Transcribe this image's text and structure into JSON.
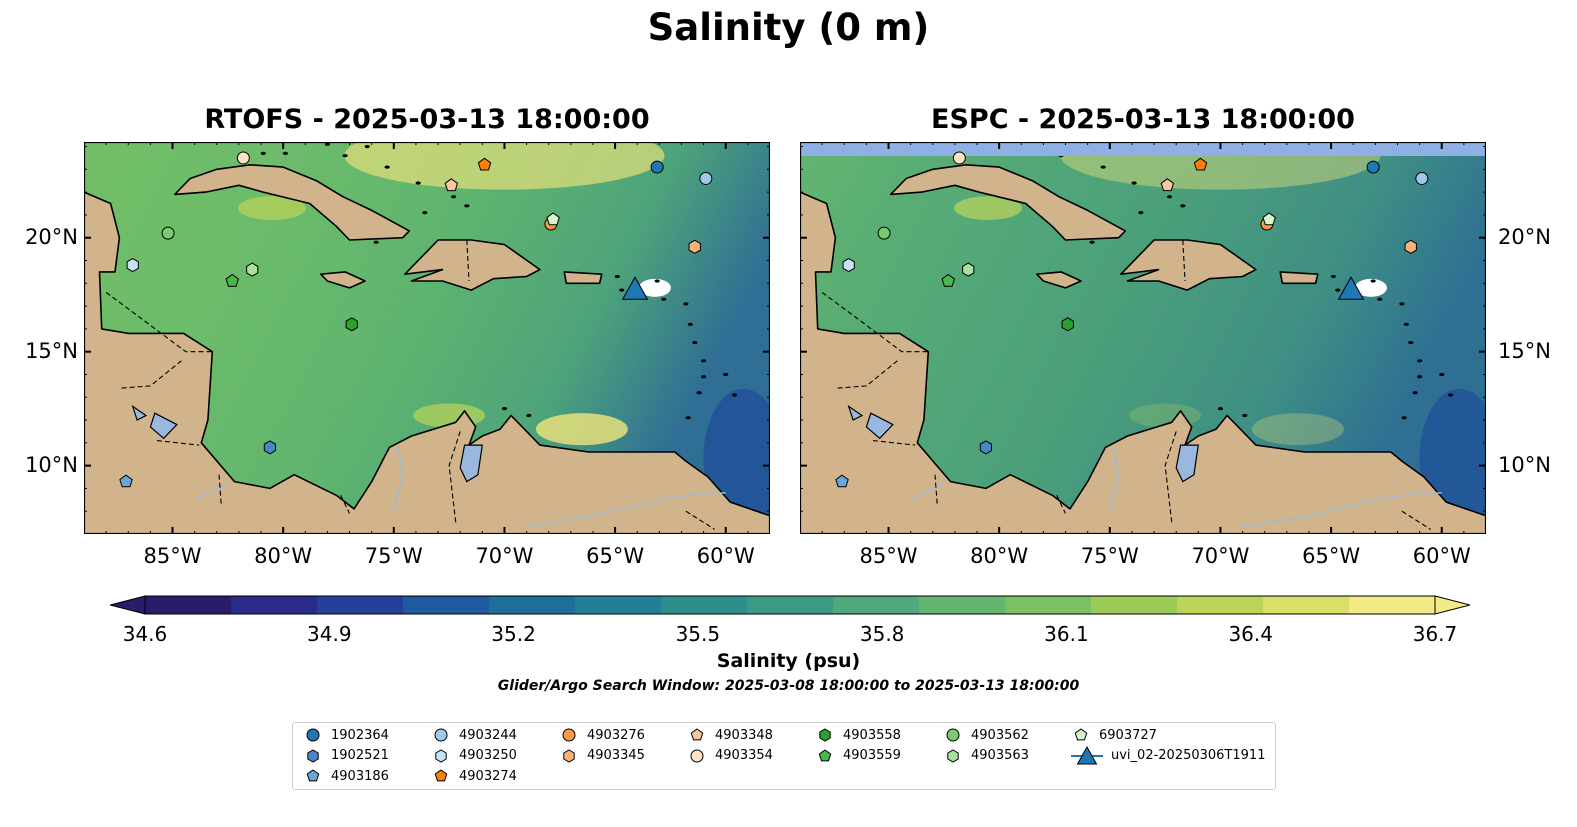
{
  "figure": {
    "title": "Salinity (0 m)",
    "search_window": "Glider/Argo Search Window: 2025-03-08 18:00:00 to 2025-03-13 18:00:00"
  },
  "panels": [
    {
      "id": "rtofs",
      "title": "RTOFS - 2025-03-13 18:00:00"
    },
    {
      "id": "espc",
      "title": "ESPC - 2025-03-13 18:00:00"
    }
  ],
  "map_extent": {
    "lon": [
      -89,
      -58
    ],
    "lat": [
      7,
      24.2
    ]
  },
  "x_ticks": [
    {
      "lon": -85,
      "label": "85°W"
    },
    {
      "lon": -80,
      "label": "80°W"
    },
    {
      "lon": -75,
      "label": "75°W"
    },
    {
      "lon": -70,
      "label": "70°W"
    },
    {
      "lon": -65,
      "label": "65°W"
    },
    {
      "lon": -60,
      "label": "60°W"
    }
  ],
  "y_ticks": [
    {
      "lat": 20,
      "label": "20°N"
    },
    {
      "lat": 15,
      "label": "15°N"
    },
    {
      "lat": 10,
      "label": "10°N"
    }
  ],
  "colorbar": {
    "label": "Salinity (psu)",
    "min": 34.6,
    "max": 36.7,
    "ticks": [
      "34.6",
      "34.9",
      "35.2",
      "35.5",
      "35.8",
      "36.1",
      "36.4",
      "36.7"
    ],
    "colors": [
      "#2b1b6b",
      "#2a2a8a",
      "#25409a",
      "#1f5a9e",
      "#1d6f9a",
      "#237f95",
      "#2e8e8c",
      "#3d9b85",
      "#4fa97b",
      "#63b56f",
      "#7dc062",
      "#9ccb58",
      "#bcd45a",
      "#dadf6a",
      "#f1ea86"
    ]
  },
  "colors": {
    "land": "#d2b48c",
    "deep_pacific": "#2b1b6b",
    "sea_rtofs": "#6cbc68",
    "sea_espc": "#58ad72",
    "lake": "#9ab7e0",
    "nodata_band": "#8fb0e4"
  },
  "chart_data": {
    "type": "scatter",
    "x_unit": "longitude (°E)",
    "y_unit": "latitude (°N)",
    "series": [
      {
        "name": "1902364",
        "marker": "circle",
        "color": "#1f77b4",
        "x": -63.1,
        "y": 23.1
      },
      {
        "name": "1902521",
        "marker": "hexagon",
        "color": "#4a86c5",
        "x": -80.6,
        "y": 10.8
      },
      {
        "name": "4903186",
        "marker": "pentagon",
        "color": "#6aa6d6",
        "x": -87.1,
        "y": 9.3
      },
      {
        "name": "4903244",
        "marker": "circle",
        "color": "#9ec9ea",
        "x": -60.9,
        "y": 22.6
      },
      {
        "name": "4903250",
        "marker": "hexagon",
        "color": "#c6e3f7",
        "x": -86.8,
        "y": 18.8
      },
      {
        "name": "4903274",
        "marker": "pentagon",
        "color": "#ff7f0e",
        "x": -70.9,
        "y": 23.2
      },
      {
        "name": "4903276",
        "marker": "circle",
        "color": "#fd9a44",
        "x": -67.9,
        "y": 20.6
      },
      {
        "name": "4903345",
        "marker": "hexagon",
        "color": "#fdb27a",
        "x": -61.4,
        "y": 19.6
      },
      {
        "name": "4903348",
        "marker": "pentagon",
        "color": "#f7c8a0",
        "x": -72.4,
        "y": 22.3
      },
      {
        "name": "4903354",
        "marker": "circle",
        "color": "#ffe3c8",
        "x": -81.8,
        "y": 23.5
      },
      {
        "name": "4903558",
        "marker": "hexagon",
        "color": "#2ca02c",
        "x": -76.9,
        "y": 16.2
      },
      {
        "name": "4903559",
        "marker": "pentagon",
        "color": "#4cb84c",
        "x": -82.3,
        "y": 18.1
      },
      {
        "name": "4903562",
        "marker": "circle",
        "color": "#78cc6e",
        "x": -85.2,
        "y": 20.2
      },
      {
        "name": "4903563",
        "marker": "hexagon",
        "color": "#a6e29a",
        "x": -81.4,
        "y": 18.6
      },
      {
        "name": "6903727",
        "marker": "pentagon",
        "color": "#d4f5cc",
        "x": -67.8,
        "y": 20.8
      },
      {
        "name": "uvi_02-20250306T1911",
        "marker": "triangle",
        "color": "#1f77b4",
        "x": -64.1,
        "y": 17.7
      }
    ]
  },
  "legend": {
    "columns": [
      [
        "1902364",
        "1902521",
        "4903186"
      ],
      [
        "4903244",
        "4903250",
        "4903274"
      ],
      [
        "4903276",
        "4903345"
      ],
      [
        "4903348",
        "4903354"
      ],
      [
        "4903558",
        "4903559"
      ],
      [
        "4903562",
        "4903563"
      ],
      [
        "6903727",
        "uvi_02-20250306T1911"
      ]
    ]
  }
}
